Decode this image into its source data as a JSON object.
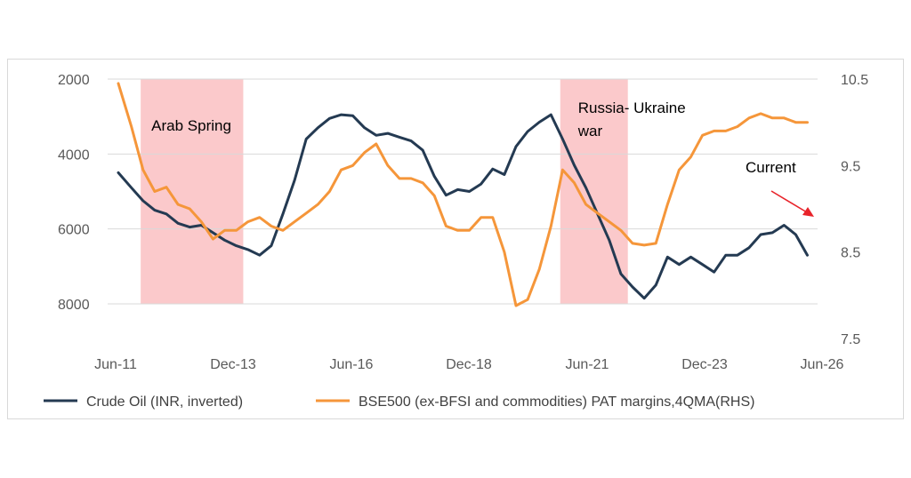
{
  "chart_data": {
    "type": "line",
    "xlabel": "",
    "ylabel": "",
    "x_ticks": [
      "Jun-11",
      "Dec-13",
      "Jun-16",
      "Dec-18",
      "Jun-21",
      "Dec-23",
      "Jun-26"
    ],
    "x_range": [
      2011.42,
      2026.42
    ],
    "y_left": {
      "ylim": [
        2000,
        8000
      ],
      "inverted": true,
      "ticks": [
        2000,
        4000,
        6000,
        8000
      ]
    },
    "y_right": {
      "ylim": [
        7.5,
        10.5
      ],
      "ticks": [
        "10.5",
        "9.5",
        "8.5",
        "7.5"
      ]
    },
    "grid": "horizontal",
    "legend_position": "bottom",
    "shaded_periods": [
      {
        "label": "Arab Spring",
        "start": 2011.9,
        "end": 2014.1
      },
      {
        "label": "Russia- Ukraine war",
        "label_lines": [
          "Russia- Ukraine",
          "war"
        ],
        "start": 2020.9,
        "end": 2022.35
      }
    ],
    "annotation": {
      "label": "Current",
      "arrow_color": "#e8232a"
    },
    "series": [
      {
        "name": "Crude Oil (INR, inverted)",
        "axis": "left",
        "color": "#243a52",
        "x": [
          2011.42,
          2011.7,
          2011.95,
          2012.2,
          2012.45,
          2012.7,
          2012.95,
          2013.2,
          2013.45,
          2013.7,
          2013.95,
          2014.2,
          2014.45,
          2014.7,
          2014.95,
          2015.2,
          2015.45,
          2015.7,
          2015.95,
          2016.2,
          2016.45,
          2016.7,
          2016.95,
          2017.2,
          2017.45,
          2017.7,
          2017.95,
          2018.2,
          2018.45,
          2018.7,
          2018.95,
          2019.2,
          2019.45,
          2019.7,
          2019.95,
          2020.2,
          2020.45,
          2020.7,
          2020.95,
          2021.2,
          2021.45,
          2021.7,
          2021.95,
          2022.2,
          2022.45,
          2022.7,
          2022.95,
          2023.2,
          2023.45,
          2023.7,
          2023.95,
          2024.2,
          2024.45,
          2024.7,
          2024.95,
          2025.2,
          2025.45,
          2025.7,
          2025.95,
          2026.2
        ],
        "values": [
          4500,
          4900,
          5250,
          5500,
          5600,
          5850,
          5950,
          5900,
          6100,
          6300,
          6450,
          6550,
          6700,
          6450,
          5600,
          4700,
          3600,
          3300,
          3050,
          2950,
          2980,
          3300,
          3500,
          3450,
          3550,
          3650,
          3900,
          4600,
          5100,
          4950,
          5000,
          4800,
          4400,
          4550,
          3800,
          3400,
          3150,
          2950,
          3600,
          4300,
          4900,
          5600,
          6300,
          7200,
          7550,
          7850,
          7500,
          6750,
          6950,
          6750,
          6950,
          7150,
          6700,
          6700,
          6500,
          6150,
          6100,
          5900,
          6150,
          6700
        ]
      },
      {
        "name": "BSE500 (ex-BFSI and commodities) PAT margins,4QMA(RHS)",
        "axis": "right",
        "color": "#f5963a",
        "x": [
          2011.42,
          2011.7,
          2011.95,
          2012.2,
          2012.45,
          2012.7,
          2012.95,
          2013.2,
          2013.45,
          2013.7,
          2013.95,
          2014.2,
          2014.45,
          2014.7,
          2014.95,
          2015.2,
          2015.45,
          2015.7,
          2015.95,
          2016.2,
          2016.45,
          2016.7,
          2016.95,
          2017.2,
          2017.45,
          2017.7,
          2017.95,
          2018.2,
          2018.45,
          2018.7,
          2018.95,
          2019.2,
          2019.45,
          2019.7,
          2019.95,
          2020.2,
          2020.45,
          2020.7,
          2020.95,
          2021.2,
          2021.45,
          2021.7,
          2021.95,
          2022.2,
          2022.45,
          2022.7,
          2022.95,
          2023.2,
          2023.45,
          2023.7,
          2023.95,
          2024.2,
          2024.45,
          2024.7,
          2024.95,
          2025.2,
          2025.45,
          2025.7,
          2025.95,
          2026.2
        ],
        "values": [
          10.45,
          9.95,
          9.45,
          9.2,
          9.25,
          9.05,
          9.0,
          8.85,
          8.65,
          8.75,
          8.75,
          8.85,
          8.9,
          8.8,
          8.75,
          8.85,
          8.95,
          9.05,
          9.2,
          9.45,
          9.5,
          9.65,
          9.75,
          9.5,
          9.35,
          9.35,
          9.3,
          9.15,
          8.8,
          8.75,
          8.75,
          8.9,
          8.9,
          8.5,
          7.88,
          7.95,
          8.3,
          8.8,
          9.45,
          9.3,
          9.05,
          8.95,
          8.85,
          8.75,
          8.6,
          8.58,
          8.6,
          9.05,
          9.45,
          9.6,
          9.85,
          9.9,
          9.9,
          9.95,
          10.05,
          10.1,
          10.05,
          10.05,
          10.0,
          10.0
        ]
      }
    ]
  }
}
